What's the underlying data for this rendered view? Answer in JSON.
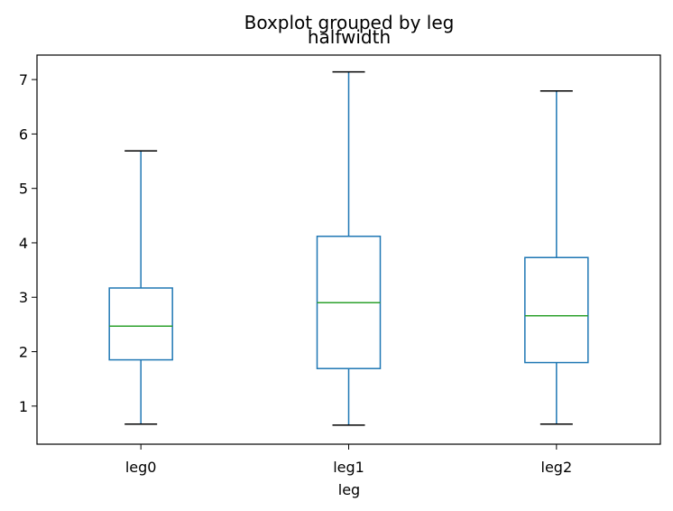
{
  "chart_data": {
    "type": "boxplot",
    "suptitle": "Boxplot grouped by leg",
    "title": "halfwidth",
    "xlabel": "leg",
    "ylabel": "",
    "categories": [
      "leg0",
      "leg1",
      "leg2"
    ],
    "ylim": [
      0.3,
      7.45
    ],
    "yticks": [
      1,
      2,
      3,
      4,
      5,
      6,
      7
    ],
    "grid": false,
    "box_color": "#1f77b4",
    "median_color": "#2ca02c",
    "whisker_cap_color": "#000000",
    "boxes": [
      {
        "category": "leg0",
        "whisker_low": 0.67,
        "q1": 1.85,
        "median": 2.47,
        "q3": 3.17,
        "whisker_high": 5.69
      },
      {
        "category": "leg1",
        "whisker_low": 0.65,
        "q1": 1.69,
        "median": 2.9,
        "q3": 4.12,
        "whisker_high": 7.14
      },
      {
        "category": "leg2",
        "whisker_low": 0.67,
        "q1": 1.8,
        "median": 2.66,
        "q3": 3.73,
        "whisker_high": 6.79
      }
    ]
  }
}
